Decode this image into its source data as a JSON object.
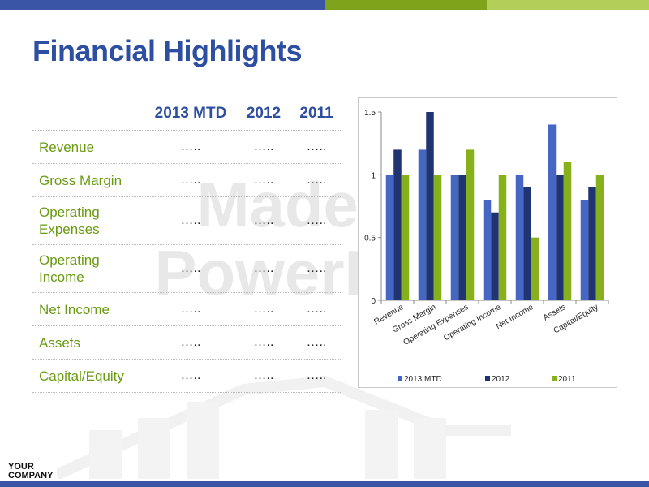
{
  "slide": {
    "title": "Financial Highlights",
    "watermark_line1": "Made for",
    "watermark_line2": "PowerPoint",
    "logo_line1": "YOUR",
    "logo_line2": "COMPANY"
  },
  "table": {
    "headers": [
      "",
      "2013 MTD",
      "2012",
      "2011"
    ],
    "rows": [
      {
        "label": "Revenue",
        "values": [
          "…..",
          "…..",
          "….."
        ]
      },
      {
        "label": "Gross Margin",
        "values": [
          "…..",
          "…..",
          "….."
        ]
      },
      {
        "label": "Operating Expenses",
        "values": [
          "…..",
          "…..",
          "….."
        ]
      },
      {
        "label": "Operating Income",
        "values": [
          "…..",
          "…..",
          "….."
        ]
      },
      {
        "label": "Net Income",
        "values": [
          "…..",
          "…..",
          "….."
        ]
      },
      {
        "label": "Assets",
        "values": [
          "…..",
          "…..",
          "….."
        ]
      },
      {
        "label": "Capital/Equity",
        "values": [
          "…..",
          "…..",
          "….."
        ]
      }
    ]
  },
  "chart_data": {
    "type": "bar",
    "categories": [
      "Revenue",
      "Gross Margin",
      "Operating Expenses",
      "Operating Income",
      "Net Income",
      "Assets",
      "Capital/Equity"
    ],
    "series": [
      {
        "name": "2013 MTD",
        "values": [
          1.0,
          1.2,
          1.0,
          0.8,
          1.0,
          1.4,
          0.8
        ],
        "color": "#4566c4"
      },
      {
        "name": "2012",
        "values": [
          1.2,
          1.5,
          1.0,
          0.7,
          0.9,
          1.0,
          0.9
        ],
        "color": "#1f3470"
      },
      {
        "name": "2011",
        "values": [
          1.0,
          1.0,
          1.2,
          1.0,
          0.5,
          1.1,
          1.0
        ],
        "color": "#86b11a"
      }
    ],
    "ylim": [
      0,
      1.5
    ],
    "yticks": [
      "0",
      "0.5",
      "1",
      "1.5"
    ],
    "grid": false,
    "legend_position": "bottom"
  }
}
